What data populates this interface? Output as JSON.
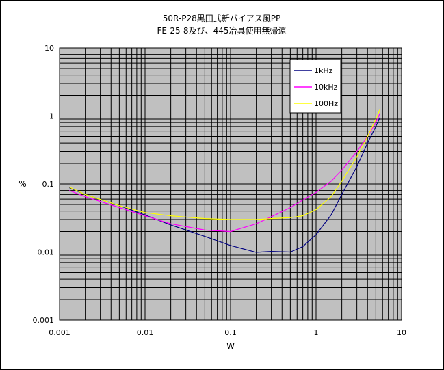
{
  "chart_data": {
    "type": "line",
    "title": [
      "50R-P28黒田式新バイアス風PP",
      "FE-25-8及び、445冶具使用無帰還"
    ],
    "xlabel": "W",
    "ylabel": "%",
    "x_scale": "log",
    "y_scale": "log",
    "xlim": [
      0.001,
      10
    ],
    "ylim": [
      0.001,
      10
    ],
    "x_ticks": [
      0.001,
      0.01,
      0.1,
      1,
      10
    ],
    "x_tick_labels": [
      "0.001",
      "0.01",
      "0.1",
      "1",
      "10"
    ],
    "y_ticks": [
      0.001,
      0.01,
      0.1,
      1,
      10
    ],
    "y_tick_labels": [
      "0.001",
      "0.01",
      "0.1",
      "1",
      "10"
    ],
    "grid": true,
    "plot_background": "#c0c0c0",
    "legend_position": "top-right",
    "series": [
      {
        "name": "1kHz",
        "color": "#000080",
        "x": [
          0.0013,
          0.002,
          0.005,
          0.01,
          0.02,
          0.05,
          0.1,
          0.2,
          0.3,
          0.5,
          0.7,
          1.0,
          1.5,
          2.0,
          3.0,
          4.0,
          5.0,
          5.6
        ],
        "y": [
          0.088,
          0.07,
          0.048,
          0.035,
          0.025,
          0.017,
          0.0125,
          0.0099,
          0.0102,
          0.01,
          0.012,
          0.018,
          0.035,
          0.07,
          0.18,
          0.4,
          0.7,
          0.95
        ]
      },
      {
        "name": "10kHz",
        "color": "#ff00ff",
        "x": [
          0.0013,
          0.002,
          0.005,
          0.01,
          0.02,
          0.05,
          0.1,
          0.2,
          0.3,
          0.5,
          0.7,
          1.0,
          1.5,
          2.0,
          3.0,
          4.0,
          5.0,
          5.6
        ],
        "y": [
          0.08,
          0.065,
          0.045,
          0.034,
          0.026,
          0.021,
          0.02,
          0.026,
          0.033,
          0.045,
          0.058,
          0.075,
          0.11,
          0.16,
          0.3,
          0.5,
          0.8,
          1.1
        ]
      },
      {
        "name": "100Hz",
        "color": "#ffff00",
        "x": [
          0.0013,
          0.002,
          0.005,
          0.01,
          0.02,
          0.05,
          0.1,
          0.2,
          0.3,
          0.5,
          0.7,
          1.0,
          1.5,
          2.0,
          3.0,
          4.0,
          5.0,
          5.6
        ],
        "y": [
          0.09,
          0.07,
          0.048,
          0.038,
          0.034,
          0.031,
          0.03,
          0.03,
          0.031,
          0.032,
          0.034,
          0.042,
          0.065,
          0.11,
          0.25,
          0.5,
          0.9,
          1.25
        ]
      }
    ]
  }
}
